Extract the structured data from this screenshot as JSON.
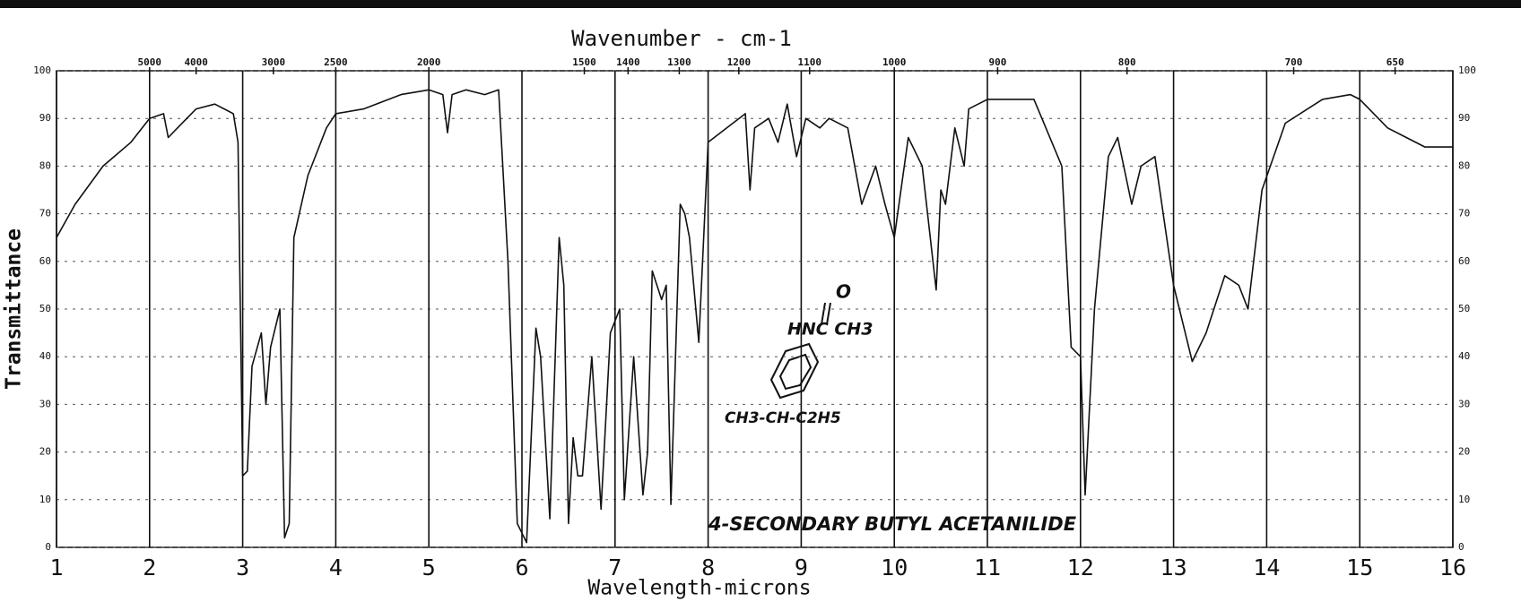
{
  "chart_data": {
    "type": "line",
    "title": "Wavenumber - cm-1",
    "xlabel": "Wavelength-microns",
    "ylabel": "Transmittance",
    "color": "#111111",
    "grid": true,
    "xlim": [
      1,
      16
    ],
    "ylim": [
      0,
      100
    ],
    "xticks": [
      1,
      2,
      3,
      4,
      5,
      6,
      7,
      8,
      9,
      10,
      11,
      12,
      13,
      14,
      15,
      16
    ],
    "yticks": [
      0,
      10,
      20,
      30,
      40,
      50,
      60,
      70,
      80,
      90,
      100
    ],
    "x2ticks": [
      {
        "value": 2.0,
        "label": "5000"
      },
      {
        "value": 2.5,
        "label": "4000"
      },
      {
        "value": 3.33,
        "label": "3000"
      },
      {
        "value": 4.0,
        "label": "2500"
      },
      {
        "value": 5.0,
        "label": "2000"
      },
      {
        "value": 6.67,
        "label": "1500"
      },
      {
        "value": 7.14,
        "label": "1400"
      },
      {
        "value": 7.69,
        "label": "1300"
      },
      {
        "value": 8.33,
        "label": "1200"
      },
      {
        "value": 9.09,
        "label": "1100"
      },
      {
        "value": 10.0,
        "label": "1000"
      },
      {
        "value": 11.11,
        "label": "900"
      },
      {
        "value": 12.5,
        "label": "800"
      },
      {
        "value": 14.29,
        "label": "700"
      },
      {
        "value": 15.38,
        "label": "650"
      }
    ],
    "x": [
      1.0,
      1.2,
      1.5,
      1.8,
      2.0,
      2.15,
      2.2,
      2.3,
      2.5,
      2.7,
      2.9,
      2.95,
      3.0,
      3.05,
      3.1,
      3.2,
      3.25,
      3.3,
      3.4,
      3.45,
      3.5,
      3.55,
      3.7,
      3.9,
      4.0,
      4.3,
      4.7,
      5.0,
      5.15,
      5.2,
      5.25,
      5.4,
      5.6,
      5.75,
      5.85,
      5.95,
      6.05,
      6.15,
      6.2,
      6.3,
      6.4,
      6.45,
      6.5,
      6.55,
      6.6,
      6.65,
      6.75,
      6.85,
      6.95,
      7.05,
      7.1,
      7.2,
      7.3,
      7.35,
      7.4,
      7.5,
      7.55,
      7.6,
      7.7,
      7.75,
      7.8,
      7.9,
      8.0,
      8.2,
      8.4,
      8.45,
      8.5,
      8.65,
      8.75,
      8.85,
      8.95,
      9.05,
      9.2,
      9.3,
      9.5,
      9.65,
      9.8,
      9.9,
      10.0,
      10.15,
      10.3,
      10.45,
      10.5,
      10.55,
      10.65,
      10.75,
      10.8,
      11.0,
      11.5,
      11.8,
      11.9,
      12.0,
      12.05,
      12.15,
      12.3,
      12.4,
      12.55,
      12.65,
      12.8,
      13.0,
      13.2,
      13.35,
      13.55,
      13.7,
      13.8,
      13.95,
      14.2,
      14.6,
      14.9,
      15.0,
      15.3,
      15.5,
      15.7,
      16.0
    ],
    "values": [
      65,
      72,
      80,
      85,
      90,
      91,
      86,
      88,
      92,
      93,
      91,
      85,
      15,
      16,
      38,
      45,
      30,
      42,
      50,
      2,
      5,
      65,
      78,
      88,
      91,
      92,
      95,
      96,
      95,
      87,
      95,
      96,
      95,
      96,
      60,
      5,
      1,
      46,
      40,
      6,
      65,
      55,
      5,
      23,
      15,
      15,
      40,
      8,
      45,
      50,
      10,
      40,
      11,
      20,
      58,
      52,
      55,
      9,
      72,
      70,
      65,
      43,
      85,
      88,
      91,
      75,
      88,
      90,
      85,
      93,
      82,
      90,
      88,
      90,
      88,
      72,
      80,
      72,
      65,
      86,
      80,
      54,
      75,
      72,
      88,
      80,
      92,
      94,
      94,
      80,
      42,
      40,
      11,
      50,
      82,
      86,
      72,
      80,
      82,
      55,
      39,
      45,
      57,
      55,
      50,
      75,
      89,
      94,
      95,
      94,
      88,
      86,
      84,
      84
    ],
    "annotations": [
      "O",
      "HNC CH3",
      "CH3-CH-C2H5",
      "4-SECONDARY BUTYL ACETANILIDE"
    ]
  }
}
